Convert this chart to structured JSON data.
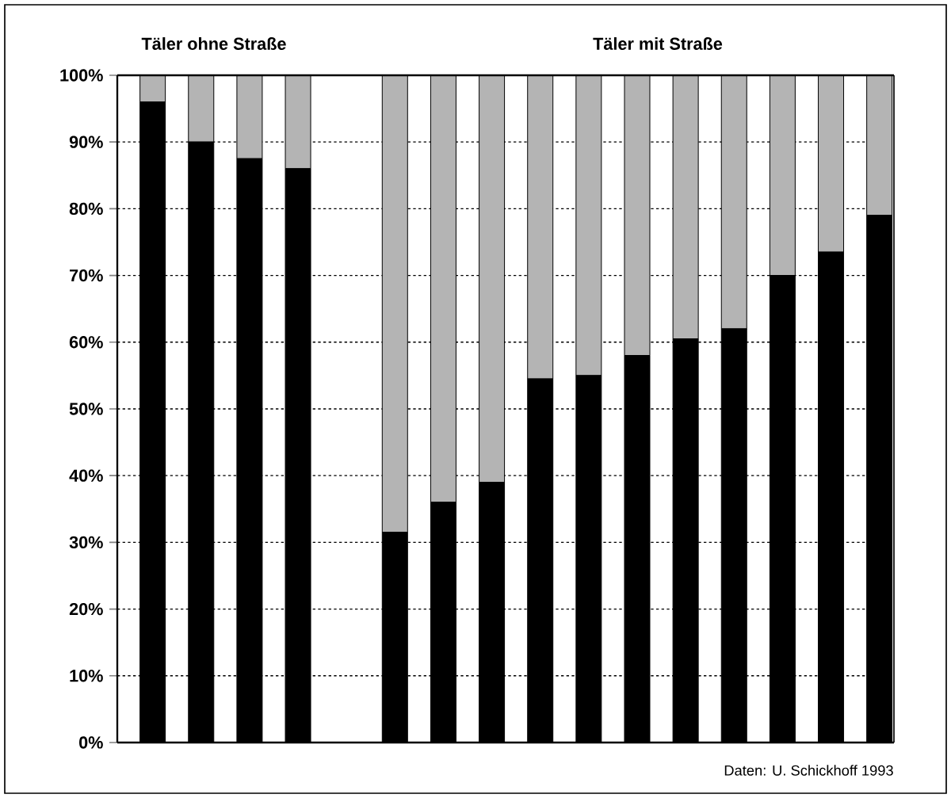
{
  "chart_data": {
    "type": "bar",
    "stacked": true,
    "categories": [
      null,
      null,
      null,
      null,
      null,
      null,
      null,
      null,
      null,
      null,
      null,
      null,
      null,
      null,
      null,
      null
    ],
    "series": [
      {
        "color": "#000000",
        "values": [
          96,
          90,
          87.5,
          86,
          null,
          31.5,
          36,
          39,
          54.5,
          55,
          58,
          60.5,
          62,
          70,
          73.5,
          79
        ]
      },
      {
        "color": "#b4b4b4",
        "values": [
          4,
          10,
          12.5,
          14,
          null,
          68.5,
          64,
          61,
          45.5,
          45,
          42,
          39.5,
          38,
          30,
          26.5,
          21
        ]
      }
    ],
    "ylim": [
      0,
      100
    ],
    "yticks": [
      {
        "value": 0,
        "label": "0%"
      },
      {
        "value": 10,
        "label": "10%"
      },
      {
        "value": 20,
        "label": "20%"
      },
      {
        "value": 30,
        "label": "30%"
      },
      {
        "value": 40,
        "label": "40%"
      },
      {
        "value": 50,
        "label": "50%"
      },
      {
        "value": 60,
        "label": "60%"
      },
      {
        "value": 70,
        "label": "70%"
      },
      {
        "value": 80,
        "label": "80%"
      },
      {
        "value": 90,
        "label": "90%"
      },
      {
        "value": 100,
        "label": "100%"
      }
    ],
    "grid": "y",
    "tick_labels": "y",
    "annotations": [
      "Täler ohne Straße",
      "Täler mit Straße",
      "Daten: U. Schickhoff 1993"
    ]
  }
}
